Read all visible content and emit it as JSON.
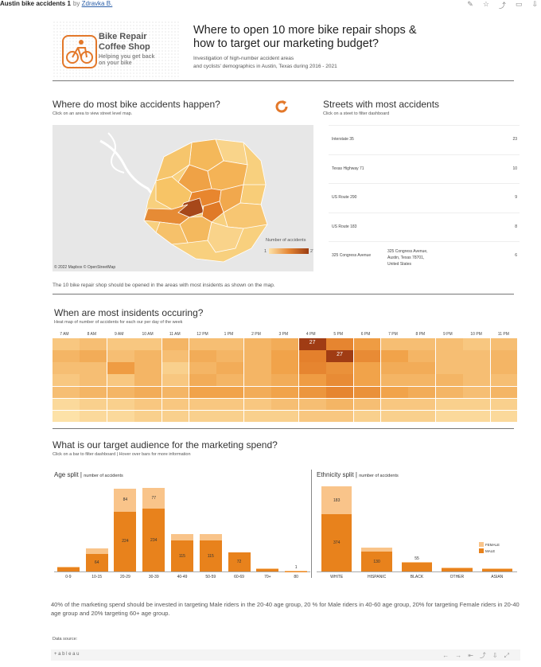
{
  "topbar": {
    "title": "Austin bike accidents 1",
    "by": "by",
    "author": "Zdravka B."
  },
  "logo": {
    "name_line1": "Bike Repair",
    "name_line2": "Coffee Shop",
    "tag_line1": "Helping you get back",
    "tag_line2": "on your bike"
  },
  "header": {
    "title_line1": "Where to open 10 more bike repair shops &",
    "title_line2": "how to target our marketing budget?",
    "sub_line1": "Investigation of high-number accident areas",
    "sub_line2": "and cyclists' demographics in Austin, Texas during 2016 - 2021"
  },
  "map": {
    "title": "Where do most bike accidents happen?",
    "caption": "Click on an area to view street level map.",
    "credit": "© 2022 Mapbox © OpenStreetMap",
    "legend_title": "Number of accidents",
    "legend_min": "1",
    "legend_max": "27",
    "note": "The 10 bike repair shop should be opened in the areas with most insidents as shown on the map."
  },
  "streets": {
    "title": "Streets with most accidents",
    "caption": "Click on a steet to filter dashboard",
    "rows": [
      {
        "name": "Interstate 35",
        "address": "",
        "value": "23"
      },
      {
        "name": "Texas Highway 71",
        "address": "",
        "value": "10"
      },
      {
        "name": "US Route 290",
        "address": "",
        "value": "9"
      },
      {
        "name": "US Route 183",
        "address": "",
        "value": "8"
      },
      {
        "name": "325 Congress Avenue",
        "address": "325 Congress Avenue, Austin, Texas 78701, United States",
        "value": "6"
      }
    ]
  },
  "heatmap": {
    "title": "When are most insidents occuring?",
    "caption": "Heat map of number of accidents for each our per day of the week",
    "hours": [
      "7 AM",
      "8 AM",
      "9 AM",
      "10 AM",
      "11 AM",
      "12 PM",
      "1 PM",
      "2 PM",
      "3 PM",
      "4 PM",
      "5 PM",
      "6 PM",
      "7 PM",
      "8 PM",
      "9 PM",
      "10 PM",
      "11 PM"
    ],
    "days": [
      "M",
      "T",
      "W",
      "T",
      "F",
      "S",
      "S"
    ],
    "values": [
      [
        8,
        9,
        8,
        8,
        10,
        9,
        9,
        10,
        11,
        27,
        17,
        13,
        9,
        9,
        9,
        8,
        9
      ],
      [
        10,
        11,
        9,
        10,
        9,
        11,
        10,
        10,
        12,
        18,
        27,
        16,
        12,
        10,
        9,
        9,
        10
      ],
      [
        9,
        9,
        13,
        10,
        7,
        10,
        11,
        10,
        12,
        17,
        15,
        12,
        11,
        11,
        9,
        9,
        10
      ],
      [
        8,
        9,
        8,
        10,
        8,
        11,
        10,
        10,
        11,
        13,
        16,
        12,
        10,
        10,
        10,
        9,
        9
      ],
      [
        9,
        10,
        10,
        11,
        10,
        12,
        12,
        11,
        12,
        14,
        17,
        15,
        12,
        11,
        10,
        9,
        10
      ],
      [
        6,
        7,
        7,
        8,
        8,
        8,
        8,
        8,
        9,
        9,
        10,
        9,
        8,
        8,
        7,
        7,
        7
      ],
      [
        5,
        6,
        6,
        7,
        7,
        7,
        7,
        7,
        7,
        8,
        8,
        7,
        7,
        7,
        6,
        6,
        6
      ]
    ]
  },
  "audience": {
    "title": "What is our target audience for the marketing spend?",
    "caption": "Click on a bar to filter dashboard | Hover over bars for more information"
  },
  "chart_data": [
    {
      "type": "bar",
      "title": "Age split",
      "subtitle": "number of accidents",
      "stacked": true,
      "categories": [
        "0-9",
        "10-15",
        "20-29",
        "30-39",
        "40-49",
        "50-59",
        "60-69",
        "70+",
        "80"
      ],
      "series": [
        {
          "name": "MALE",
          "values": [
            14,
            64,
            224,
            234,
            115,
            115,
            72,
            10,
            1
          ]
        },
        {
          "name": "FEMALE",
          "values": [
            4,
            22,
            84,
            77,
            25,
            24,
            0,
            3,
            1
          ]
        }
      ],
      "labels": {
        "MALE": [
          "",
          "64",
          "224",
          "234",
          "115",
          "115",
          "72",
          "",
          "1"
        ],
        "FEMALE": [
          "",
          "",
          "84",
          "77",
          "",
          "",
          "",
          "",
          ""
        ]
      }
    },
    {
      "type": "bar",
      "title": "Ethnicity split",
      "subtitle": "number of accidents",
      "stacked": true,
      "categories": [
        "WHITE",
        "HISPANIC",
        "BLACK",
        "OTHER",
        "ASIAN"
      ],
      "series": [
        {
          "name": "MALE",
          "values": [
            374,
            130,
            55,
            20,
            16
          ]
        },
        {
          "name": "FEMALE",
          "values": [
            183,
            25,
            8,
            5,
            3
          ]
        }
      ],
      "labels": {
        "MALE": [
          "374",
          "130",
          "55",
          "",
          ""
        ],
        "FEMALE": [
          "183",
          "",
          "",
          "",
          ""
        ]
      },
      "legend": [
        "FEMALE",
        "MALE"
      ]
    }
  ],
  "colors": {
    "male": "#e8821c",
    "female": "#f9c48a",
    "accent": "#e3782a"
  },
  "summary": "40% of the marketing spend should be invested in targeting Male riders in the 20-40 age group, 20 % for Male riders in 40-60 age group, 20% for targeting Female riders in 20-40 age group and 20% targeting 60+ age group.",
  "footer": {
    "datasource": "Data source:",
    "brand": "+ a b l e a u"
  }
}
